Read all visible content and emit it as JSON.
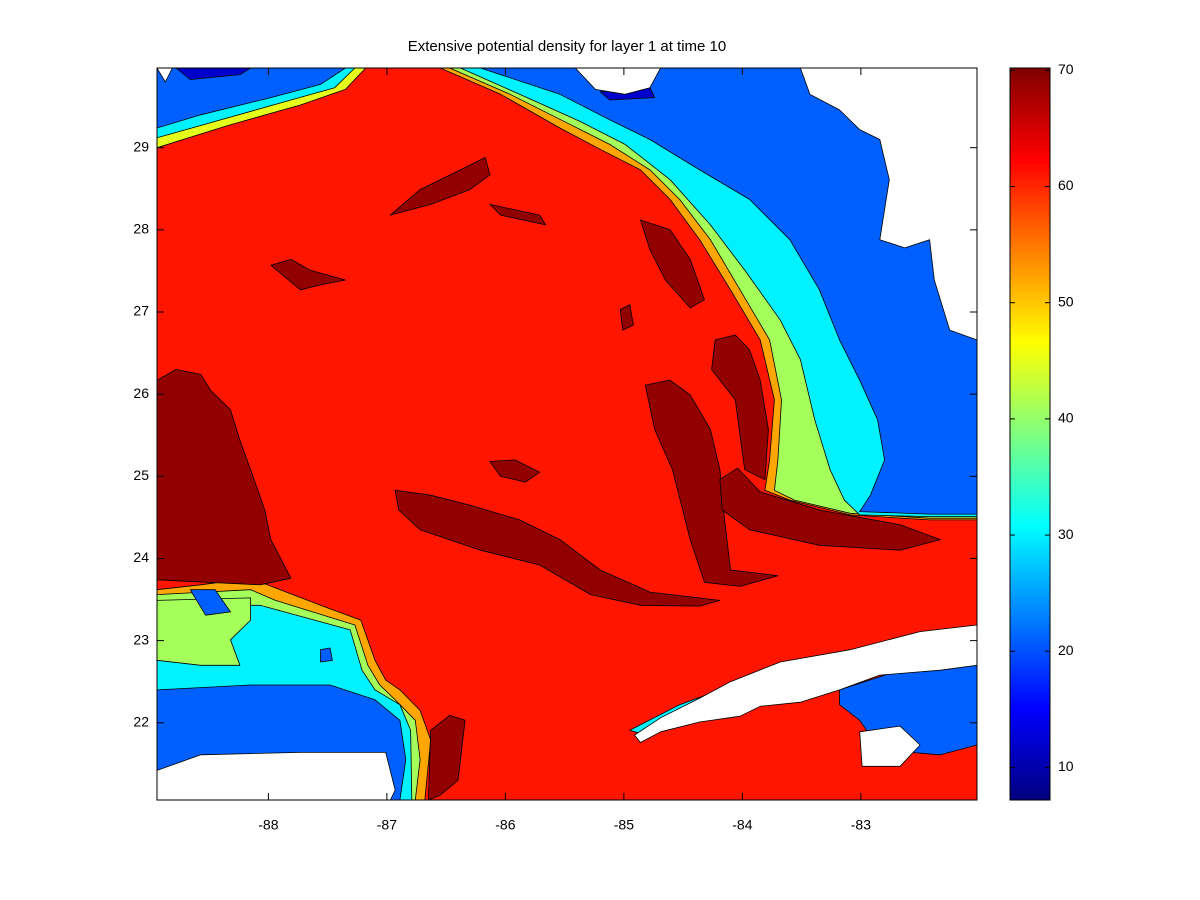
{
  "chart_data": {
    "type": "contour",
    "title": "Extensive potential density for layer 1 at time 10",
    "xlim": [
      -88.94,
      -82.02
    ],
    "ylim": [
      21.06,
      29.97
    ],
    "xticks": [
      -88,
      -87,
      -86,
      -85,
      -84,
      -83
    ],
    "yticks": [
      22,
      23,
      24,
      25,
      26,
      27,
      28,
      29
    ],
    "colormap": "jet",
    "clim": [
      7.2,
      70.2
    ],
    "colorbar_ticks": [
      10,
      20,
      30,
      40,
      50,
      60,
      70
    ],
    "land_color": "#ffffff",
    "regions": [
      {
        "level": 61,
        "lon": [
          -88.94,
          -82.02,
          -82.02,
          -88.94
        ],
        "lat": [
          21.06,
          21.06,
          29.97,
          29.97
        ]
      },
      {
        "level": 52,
        "lon": [
          -86.55,
          -86.04,
          -85.54,
          -85.2,
          -84.86,
          -84.61,
          -84.36,
          -84.1,
          -83.85,
          -83.73,
          -83.77,
          -83.81,
          -83.6,
          -83.09,
          -82.42,
          -82.02,
          -82.02
        ],
        "lat": [
          29.97,
          29.65,
          29.24,
          28.98,
          28.73,
          28.37,
          27.88,
          27.27,
          26.66,
          25.93,
          25.2,
          24.83,
          24.71,
          24.53,
          24.47,
          24.47,
          29.97
        ]
      },
      {
        "level": 41,
        "lon": [
          -86.47,
          -85.96,
          -85.45,
          -85.12,
          -84.78,
          -84.53,
          -84.27,
          -84.02,
          -83.77,
          -83.67,
          -83.7,
          -83.73,
          -83.56,
          -83.09,
          -82.42,
          -82.02,
          -82.02
        ],
        "lat": [
          29.97,
          29.65,
          29.28,
          29.04,
          28.73,
          28.37,
          27.88,
          27.27,
          26.66,
          25.93,
          25.2,
          24.83,
          24.71,
          24.55,
          24.49,
          24.49,
          29.97
        ]
      },
      {
        "level": 30,
        "lon": [
          -86.38,
          -85.88,
          -85.37,
          -84.99,
          -84.61,
          -84.27,
          -83.98,
          -83.68,
          -83.51,
          -83.39,
          -83.26,
          -83.14,
          -83.01,
          -82.42,
          -82.02,
          -82.02
        ],
        "lat": [
          29.97,
          29.65,
          29.32,
          29.04,
          28.61,
          28.06,
          27.51,
          26.9,
          26.42,
          25.69,
          25.08,
          24.71,
          24.53,
          24.51,
          24.51,
          29.97
        ]
      },
      {
        "level": 21,
        "lon": [
          -86.21,
          -85.54,
          -85.12,
          -84.78,
          -84.36,
          -83.94,
          -83.6,
          -83.35,
          -83.18,
          -83.01,
          -82.86,
          -82.8,
          -82.92,
          -83.01,
          -82.42,
          -82.02,
          -82.02
        ],
        "lat": [
          29.97,
          29.65,
          29.34,
          29.1,
          28.73,
          28.37,
          27.88,
          27.27,
          26.66,
          26.17,
          25.69,
          25.2,
          24.77,
          24.57,
          24.54,
          24.54,
          29.97
        ]
      },
      {
        "level": 45,
        "lon": [
          -88.94,
          -87.18,
          -87.35,
          -87.73,
          -88.32,
          -88.94
        ],
        "lat": [
          29.97,
          29.97,
          29.71,
          29.52,
          29.28,
          29.0
        ]
      },
      {
        "level": 30,
        "lon": [
          -88.94,
          -87.27,
          -87.44,
          -87.81,
          -88.4,
          -88.94
        ],
        "lat": [
          29.97,
          29.97,
          29.73,
          29.58,
          29.34,
          29.12
        ]
      },
      {
        "level": 21,
        "lon": [
          -88.94,
          -87.35,
          -87.56,
          -87.98,
          -88.57,
          -88.94
        ],
        "lat": [
          29.97,
          29.97,
          29.77,
          29.61,
          29.4,
          29.24
        ]
      },
      {
        "level": 12,
        "lon": [
          -88.78,
          -88.15,
          -88.24,
          -88.66
        ],
        "lat": [
          29.97,
          29.97,
          29.89,
          29.83
        ]
      },
      {
        "level": 12,
        "lon": [
          -85.2,
          -84.78,
          -84.74,
          -85.12
        ],
        "lat": [
          29.68,
          29.73,
          29.61,
          29.58
        ]
      },
      {
        "level": 52,
        "lon": [
          -88.94,
          -88.57,
          -88.15,
          -87.9,
          -87.56,
          -87.22,
          -87.1,
          -87.01,
          -86.89,
          -86.72,
          -86.63,
          -86.68,
          -88.94
        ],
        "lat": [
          23.62,
          23.68,
          23.76,
          23.62,
          23.43,
          23.25,
          22.76,
          22.52,
          22.4,
          22.15,
          21.79,
          21.06,
          21.06
        ]
      },
      {
        "level": 41,
        "lon": [
          -88.94,
          -88.15,
          -87.94,
          -87.27,
          -87.16,
          -87.06,
          -86.93,
          -86.76,
          -86.72,
          -86.76,
          -88.94
        ],
        "lat": [
          23.56,
          23.62,
          23.49,
          23.19,
          22.7,
          22.46,
          22.28,
          22.03,
          21.55,
          21.06,
          21.06
        ]
      },
      {
        "level": 30,
        "lon": [
          -88.94,
          -88.07,
          -87.31,
          -87.21,
          -87.1,
          -86.89,
          -86.8,
          -86.79,
          -88.94
        ],
        "lat": [
          23.43,
          23.43,
          23.13,
          22.64,
          22.4,
          22.22,
          21.91,
          21.06,
          21.06
        ]
      },
      {
        "level": 41,
        "lon": [
          -88.94,
          -88.15,
          -88.15,
          -88.32,
          -88.24,
          -88.57,
          -88.94
        ],
        "lat": [
          23.49,
          23.52,
          23.25,
          23.01,
          22.7,
          22.7,
          22.76
        ]
      },
      {
        "level": 21,
        "lon": [
          -88.94,
          -88.15,
          -87.48,
          -87.1,
          -86.89,
          -86.84,
          -86.89,
          -88.94
        ],
        "lat": [
          22.4,
          22.46,
          22.46,
          22.28,
          22.03,
          21.55,
          21.06,
          21.06
        ]
      },
      {
        "level": 21,
        "lon": [
          -88.66,
          -88.45,
          -88.32,
          -88.53
        ],
        "lat": [
          23.62,
          23.62,
          23.35,
          23.31
        ]
      },
      {
        "level": 21,
        "lon": [
          -87.56,
          -87.48,
          -87.46,
          -87.56
        ],
        "lat": [
          22.89,
          22.91,
          22.76,
          22.74
        ]
      },
      {
        "level": 69,
        "lon": [
          -88.94,
          -88.78,
          -88.57,
          -88.49,
          -88.32,
          -88.24,
          -88.15,
          -88.03,
          -87.98,
          -87.81,
          -88.07,
          -88.94
        ],
        "lat": [
          26.17,
          26.3,
          26.24,
          26.05,
          25.81,
          25.44,
          25.08,
          24.59,
          24.23,
          23.76,
          23.68,
          23.74
        ]
      },
      {
        "level": 69,
        "lon": [
          -86.93,
          -86.63,
          -86.3,
          -85.88,
          -85.54,
          -85.2,
          -84.78,
          -84.19,
          -84.36,
          -84.86,
          -85.28,
          -85.71,
          -86.21,
          -86.72,
          -86.9
        ],
        "lat": [
          24.83,
          24.77,
          24.65,
          24.47,
          24.23,
          23.86,
          23.59,
          23.49,
          23.42,
          23.43,
          23.56,
          23.92,
          24.1,
          24.35,
          24.59
        ]
      },
      {
        "level": 69,
        "lon": [
          -84.86,
          -84.61,
          -84.44,
          -84.32,
          -84.44,
          -84.65,
          -84.78
        ],
        "lat": [
          28.12,
          28.0,
          27.64,
          27.15,
          27.05,
          27.39,
          27.76
        ]
      },
      {
        "level": 69,
        "lon": [
          -84.82,
          -84.61,
          -84.44,
          -84.27,
          -84.19,
          -84.15,
          -84.1,
          -83.7,
          -84.02,
          -84.32,
          -84.44,
          -84.59,
          -84.74
        ],
        "lat": [
          26.11,
          26.17,
          25.99,
          25.57,
          25.08,
          24.47,
          23.86,
          23.79,
          23.66,
          23.71,
          24.23,
          25.08,
          25.57
        ]
      },
      {
        "level": 69,
        "lon": [
          -84.23,
          -84.06,
          -83.94,
          -83.85,
          -83.78,
          -83.81,
          -83.98,
          -84.06,
          -84.26
        ],
        "lat": [
          26.66,
          26.72,
          26.54,
          26.17,
          25.57,
          24.96,
          25.08,
          25.93,
          26.3
        ]
      },
      {
        "level": 69,
        "lon": [
          -84.19,
          -84.04,
          -83.85,
          -83.35,
          -82.67,
          -82.33,
          -82.67,
          -83.35,
          -83.94,
          -84.17
        ],
        "lat": [
          24.96,
          25.1,
          24.81,
          24.59,
          24.41,
          24.23,
          24.1,
          24.16,
          24.35,
          24.59
        ]
      },
      {
        "level": 69,
        "lon": [
          -86.97,
          -86.72,
          -86.38,
          -86.17,
          -86.13,
          -86.3,
          -86.63
        ],
        "lat": [
          28.18,
          28.49,
          28.73,
          28.88,
          28.67,
          28.49,
          28.31
        ]
      },
      {
        "level": 69,
        "lon": [
          -87.98,
          -87.81,
          -87.65,
          -87.35,
          -87.56,
          -87.73
        ],
        "lat": [
          27.57,
          27.64,
          27.51,
          27.39,
          27.33,
          27.27
        ]
      },
      {
        "level": 69,
        "lon": [
          -86.13,
          -85.92,
          -85.71,
          -85.83,
          -86.04
        ],
        "lat": [
          25.18,
          25.2,
          25.05,
          24.93,
          25.0
        ]
      },
      {
        "level": 69,
        "lon": [
          -85.03,
          -84.95,
          -84.92,
          -85.01
        ],
        "lat": [
          27.03,
          27.09,
          26.84,
          26.78
        ]
      },
      {
        "level": 69,
        "lon": [
          -86.63,
          -86.47,
          -86.34,
          -86.4,
          -86.55,
          -86.65
        ],
        "lat": [
          21.91,
          22.09,
          22.03,
          21.3,
          21.12,
          21.06
        ]
      },
      {
        "level": 69,
        "lon": [
          -86.13,
          -85.71,
          -85.66,
          -86.04
        ],
        "lat": [
          28.31,
          28.18,
          28.06,
          28.18
        ]
      },
      {
        "level": 21,
        "lon": [
          -83.18,
          -82.67,
          -82.02,
          -82.02,
          -82.33,
          -82.84,
          -83.01,
          -83.18
        ],
        "lat": [
          22.4,
          22.64,
          22.7,
          21.73,
          21.61,
          21.67,
          22.03,
          22.22
        ]
      },
      {
        "level": 30,
        "lon": [
          -84.95,
          -84.53,
          -84.19,
          -84.36,
          -84.82
        ],
        "lat": [
          21.91,
          22.22,
          22.4,
          22.25,
          21.85
        ]
      }
    ],
    "land": [
      {
        "lon": [
          -84.91,
          -84.69,
          -84.36,
          -84.1,
          -83.68,
          -83.09,
          -82.5,
          -82.02,
          -82.02,
          -82.33,
          -82.84,
          -83.18,
          -83.51,
          -83.85,
          -84.02,
          -84.36,
          -84.69,
          -84.86
        ],
        "lat": [
          21.85,
          22.06,
          22.3,
          22.5,
          22.74,
          22.89,
          23.11,
          23.19,
          22.7,
          22.64,
          22.58,
          22.4,
          22.25,
          22.2,
          22.08,
          22.01,
          21.89,
          21.76
        ]
      },
      {
        "lon": [
          -83.01,
          -82.67,
          -82.5,
          -82.67,
          -82.99
        ],
        "lat": [
          21.89,
          21.96,
          21.73,
          21.47,
          21.47
        ]
      },
      {
        "lon": [
          -88.94,
          -88.57,
          -87.73,
          -87.01,
          -86.93,
          -86.97,
          -88.94
        ],
        "lat": [
          21.42,
          21.61,
          21.64,
          21.64,
          21.18,
          21.06,
          21.06
        ]
      },
      {
        "lon": [
          -83.51,
          -83.43,
          -83.18,
          -83.01,
          -82.84,
          -82.76,
          -82.84,
          -82.63,
          -82.42,
          -82.38,
          -82.25,
          -82.02,
          -82.02
        ],
        "lat": [
          29.97,
          29.65,
          29.46,
          29.22,
          29.1,
          28.61,
          27.88,
          27.78,
          27.88,
          27.39,
          26.78,
          26.66,
          29.97
        ]
      },
      {
        "lon": [
          -85.41,
          -84.69,
          -84.78,
          -84.99,
          -85.24
        ],
        "lat": [
          29.97,
          29.97,
          29.73,
          29.65,
          29.71
        ]
      },
      {
        "lon": [
          -88.94,
          -88.81,
          -88.87
        ],
        "lat": [
          29.97,
          29.97,
          29.8
        ]
      }
    ]
  }
}
